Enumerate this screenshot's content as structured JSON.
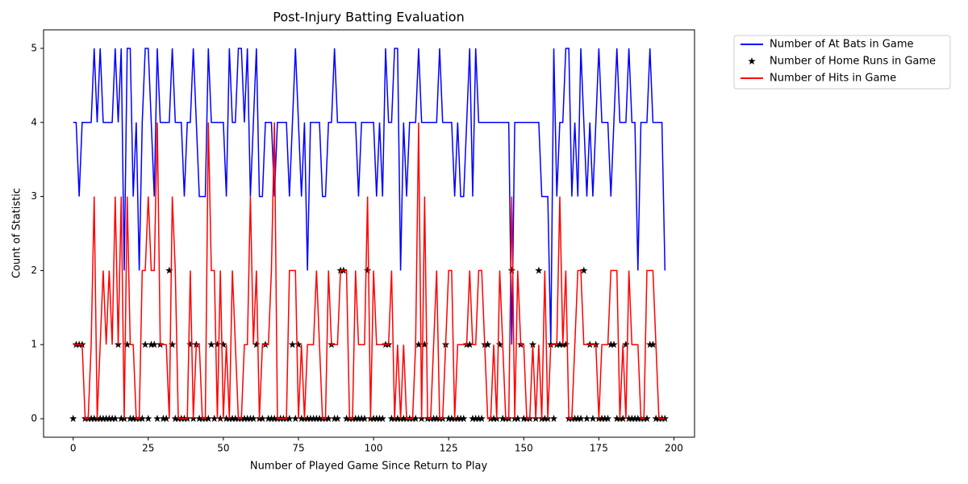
{
  "chart_data": {
    "type": "line",
    "title": "Post-Injury Batting Evaluation",
    "x_label": "Number of Played Game Since Return to Play",
    "y_label": "Count of Statistic",
    "xlim": [
      -9.85,
      206.85
    ],
    "xticks": [
      0,
      25,
      50,
      75,
      100,
      125,
      150,
      175,
      200
    ],
    "ylim": [
      -0.25,
      5.25
    ],
    "yticks": [
      0,
      1,
      2,
      3,
      4,
      5
    ],
    "legend": "outside upper right",
    "series": [
      {
        "name": "Number of At Bats in Game",
        "color": "#0000ff",
        "style": "line",
        "values": [
          4,
          4,
          3,
          4,
          4,
          4,
          4,
          5,
          4,
          5,
          4,
          4,
          4,
          4,
          5,
          4,
          5,
          2,
          5,
          5,
          3,
          4,
          2,
          4,
          5,
          5,
          4,
          3,
          5,
          4,
          4,
          4,
          4,
          5,
          4,
          4,
          4,
          3,
          4,
          4,
          5,
          4,
          3,
          3,
          3,
          5,
          4,
          4,
          4,
          4,
          4,
          3,
          5,
          4,
          4,
          5,
          5,
          4,
          5,
          3,
          4,
          5,
          3,
          3,
          4,
          4,
          4,
          3,
          4,
          4,
          4,
          4,
          3,
          4,
          5,
          4,
          3,
          4,
          2,
          4,
          4,
          4,
          4,
          3,
          3,
          4,
          4,
          5,
          4,
          4,
          4,
          4,
          4,
          4,
          4,
          3,
          4,
          4,
          4,
          4,
          4,
          3,
          4,
          3,
          5,
          4,
          4,
          5,
          5,
          2,
          4,
          3,
          4,
          4,
          4,
          5,
          4,
          4,
          4,
          4,
          4,
          4,
          5,
          4,
          4,
          4,
          4,
          3,
          4,
          3,
          3,
          4,
          5,
          3,
          5,
          4,
          4,
          4,
          4,
          4,
          4,
          4,
          4,
          4,
          4,
          4,
          1,
          4,
          4,
          4,
          4,
          4,
          4,
          4,
          4,
          4,
          3,
          3,
          3,
          1,
          5,
          3,
          4,
          4,
          5,
          5,
          3,
          4,
          3,
          5,
          4,
          3,
          4,
          3,
          4,
          5,
          4,
          4,
          4,
          3,
          4,
          5,
          4,
          4,
          4,
          5,
          4,
          4,
          2,
          4,
          4,
          4,
          5,
          4,
          4,
          4,
          4,
          2
        ]
      },
      {
        "name": "Number of Home Runs in Game",
        "color": "#000000",
        "style": "markers",
        "values": [
          0,
          1,
          1,
          1,
          0,
          0,
          0,
          0,
          0,
          0,
          0,
          0,
          0,
          0,
          0,
          1,
          0,
          0,
          1,
          0,
          0,
          0,
          0,
          0,
          1,
          0,
          1,
          1,
          0,
          1,
          0,
          0,
          2,
          1,
          0,
          0,
          0,
          0,
          0,
          1,
          0,
          1,
          0,
          0,
          0,
          0,
          1,
          0,
          1,
          0,
          1,
          0,
          0,
          0,
          0,
          0,
          0,
          0,
          0,
          0,
          0,
          1,
          0,
          0,
          1,
          0,
          0,
          0,
          0,
          0,
          0,
          0,
          0,
          1,
          0,
          1,
          0,
          0,
          0,
          0,
          0,
          0,
          0,
          0,
          0,
          0,
          1,
          0,
          0,
          2,
          2,
          0,
          0,
          0,
          0,
          0,
          0,
          0,
          2,
          0,
          0,
          0,
          0,
          0,
          1,
          1,
          0,
          0,
          0,
          0,
          0,
          0,
          0,
          0,
          0,
          1,
          0,
          1,
          0,
          0,
          0,
          0,
          0,
          0,
          1,
          0,
          0,
          0,
          0,
          0,
          0,
          1,
          1,
          0,
          0,
          0,
          0,
          1,
          1,
          0,
          0,
          0,
          1,
          0,
          0,
          0,
          2,
          0,
          0,
          1,
          0,
          0,
          0,
          1,
          0,
          2,
          0,
          0,
          0,
          1,
          0,
          1,
          1,
          1,
          1,
          0,
          0,
          0,
          0,
          0,
          2,
          0,
          1,
          0,
          1,
          0,
          0,
          0,
          0,
          1,
          1,
          0,
          0,
          0,
          1,
          0,
          0,
          0,
          0,
          0,
          0,
          0,
          1,
          1,
          0,
          0,
          0,
          0
        ]
      },
      {
        "name": "Number of Hits in Game",
        "color": "#ff0000",
        "style": "line",
        "values": [
          1,
          1,
          1,
          1,
          0,
          0,
          1,
          3,
          0,
          1,
          2,
          1,
          2,
          1,
          3,
          1,
          3,
          0,
          3,
          1,
          1,
          0,
          0,
          2,
          2,
          3,
          2,
          2,
          4,
          1,
          1,
          1,
          0,
          3,
          2,
          0,
          0,
          0,
          0,
          2,
          0,
          1,
          1,
          0,
          0,
          4,
          2,
          2,
          0,
          2,
          0,
          1,
          0,
          2,
          1,
          0,
          0,
          1,
          1,
          3,
          1,
          2,
          0,
          1,
          1,
          1,
          2,
          4,
          0,
          0,
          0,
          0,
          2,
          2,
          2,
          0,
          1,
          0,
          1,
          1,
          1,
          2,
          1,
          0,
          0,
          2,
          1,
          1,
          1,
          2,
          2,
          2,
          0,
          0,
          2,
          1,
          1,
          1,
          3,
          0,
          2,
          1,
          1,
          1,
          1,
          1,
          2,
          0,
          1,
          0,
          1,
          0,
          0,
          0,
          1,
          4,
          0,
          3,
          0,
          0,
          1,
          2,
          0,
          0,
          1,
          2,
          2,
          0,
          1,
          1,
          1,
          1,
          2,
          1,
          1,
          2,
          2,
          1,
          0,
          0,
          1,
          0,
          2,
          1,
          0,
          0,
          3,
          0,
          2,
          1,
          1,
          0,
          0,
          1,
          0,
          1,
          0,
          2,
          0,
          1,
          1,
          1,
          3,
          1,
          2,
          0,
          0,
          1,
          2,
          2,
          1,
          1,
          1,
          1,
          1,
          0,
          1,
          1,
          1,
          2,
          2,
          2,
          0,
          1,
          0,
          2,
          1,
          1,
          1,
          0,
          0,
          2,
          2,
          2,
          1,
          0,
          0,
          0
        ]
      }
    ]
  }
}
